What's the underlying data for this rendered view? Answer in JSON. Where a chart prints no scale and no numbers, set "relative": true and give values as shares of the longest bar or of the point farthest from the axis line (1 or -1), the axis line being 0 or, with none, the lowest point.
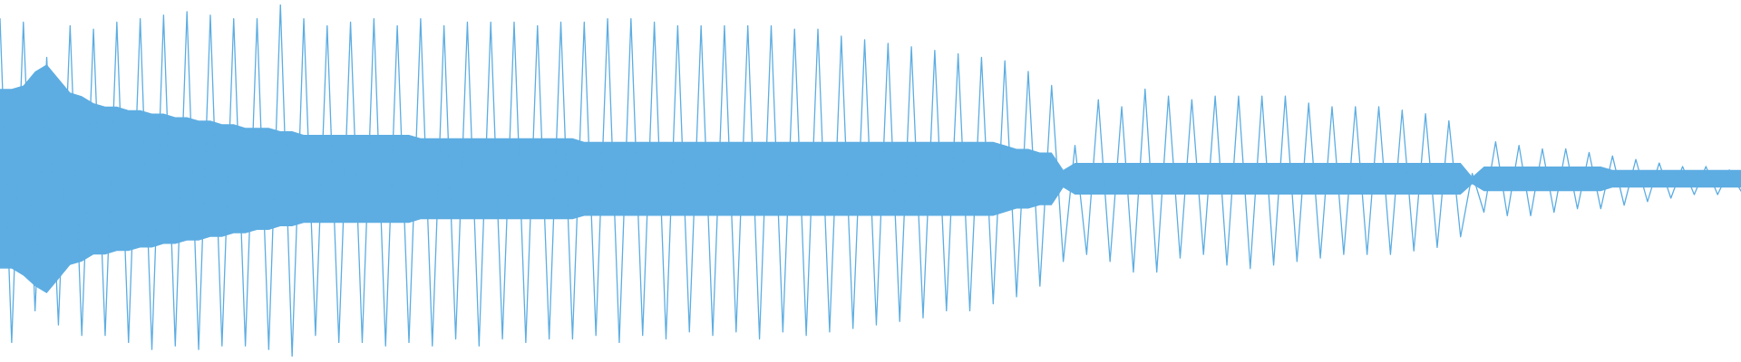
{
  "chart_data": {
    "type": "line",
    "relative": true,
    "categories": [
      null,
      null,
      null,
      null,
      null,
      null,
      null,
      null,
      null,
      null,
      null,
      null,
      null,
      null,
      null,
      null,
      null,
      null,
      null,
      null,
      null,
      null,
      null,
      null,
      null,
      null,
      null,
      null,
      null,
      null,
      null,
      null,
      null,
      null,
      null,
      null,
      null,
      null,
      null,
      null,
      null,
      null,
      null,
      null,
      null,
      null,
      null,
      null,
      null,
      null,
      null,
      null,
      null,
      null,
      null,
      null,
      null,
      null,
      null,
      null,
      null,
      null,
      null,
      null,
      null,
      null,
      null,
      null,
      null,
      null,
      null,
      null,
      null,
      null,
      null,
      null,
      null,
      null,
      null,
      null,
      null,
      null,
      null,
      null,
      null,
      null,
      null,
      null,
      null,
      null,
      null,
      null,
      null,
      null,
      null,
      null,
      null,
      null,
      null,
      null,
      null,
      null,
      null,
      null,
      null,
      null,
      null,
      null,
      null,
      null,
      null,
      null,
      null,
      null,
      null,
      null,
      null,
      null,
      null,
      null,
      null,
      null,
      null,
      null,
      null,
      null,
      null,
      null,
      null,
      null,
      null,
      null,
      null,
      null,
      null,
      null,
      null,
      null,
      null,
      null,
      null,
      null,
      null,
      null,
      null,
      null,
      null,
      null,
      null,
      null
    ],
    "series": [
      {
        "color": "#5dade2",
        "values": [
          0.96,
          0.04,
          0.95,
          0.13,
          0.85,
          0.09,
          0.94,
          0.06,
          0.93,
          0.06,
          0.95,
          0.04,
          0.96,
          0.02,
          0.97,
          0.03,
          0.98,
          0.02,
          0.97,
          0.03,
          0.96,
          0.03,
          0.96,
          0.02,
          1,
          0,
          0.96,
          0.06,
          0.94,
          0.04,
          0.95,
          0.04,
          0.96,
          0.03,
          0.94,
          0.04,
          0.96,
          0.03,
          0.94,
          0.05,
          0.95,
          0.03,
          0.95,
          0.05,
          0.95,
          0.04,
          0.94,
          0.05,
          0.95,
          0.05,
          0.95,
          0.06,
          0.96,
          0.04,
          0.96,
          0.06,
          0.95,
          0.05,
          0.94,
          0.07,
          0.94,
          0.06,
          0.94,
          0.07,
          0.94,
          0.05,
          0.94,
          0.07,
          0.93,
          0.06,
          0.93,
          0.07,
          0.91,
          0.08,
          0.9,
          0.09,
          0.89,
          0.1,
          0.88,
          0.11,
          0.87,
          0.13,
          0.86,
          0.13,
          0.85,
          0.15,
          0.84,
          0.17,
          0.81,
          0.2,
          0.77,
          0.27,
          0.6,
          0.29,
          0.73,
          0.27,
          0.71,
          0.24,
          0.76,
          0.24,
          0.74,
          0.28,
          0.73,
          0.29,
          0.74,
          0.26,
          0.74,
          0.25,
          0.74,
          0.26,
          0.74,
          0.27,
          0.72,
          0.28,
          0.71,
          0.29,
          0.71,
          0.29,
          0.71,
          0.29,
          0.7,
          0.3,
          0.69,
          0.31,
          0.67,
          0.34,
          0.52,
          0.41,
          0.61,
          0.4,
          0.6,
          0.4,
          0.59,
          0.41,
          0.59,
          0.42,
          0.58,
          0.42,
          0.57,
          0.43,
          0.56,
          0.44,
          0.55,
          0.45,
          0.54,
          0.46,
          0.54,
          0.46,
          0.53,
          0.47
        ],
        "upper": [
          0.76,
          0.76,
          0.77,
          0.81,
          0.83,
          0.79,
          0.75,
          0.74,
          0.72,
          0.71,
          0.71,
          0.7,
          0.7,
          0.69,
          0.69,
          0.68,
          0.68,
          0.67,
          0.67,
          0.66,
          0.66,
          0.65,
          0.65,
          0.65,
          0.64,
          0.64,
          0.63,
          0.63,
          0.63,
          0.63,
          0.63,
          0.63,
          0.63,
          0.63,
          0.63,
          0.63,
          0.62,
          0.62,
          0.62,
          0.62,
          0.62,
          0.62,
          0.62,
          0.62,
          0.62,
          0.62,
          0.62,
          0.62,
          0.62,
          0.62,
          0.61,
          0.61,
          0.61,
          0.61,
          0.61,
          0.61,
          0.61,
          0.61,
          0.61,
          0.61,
          0.61,
          0.61,
          0.61,
          0.61,
          0.61,
          0.61,
          0.61,
          0.61,
          0.61,
          0.61,
          0.61,
          0.61,
          0.61,
          0.61,
          0.61,
          0.61,
          0.61,
          0.61,
          0.61,
          0.61,
          0.61,
          0.61,
          0.61,
          0.61,
          0.61,
          0.61,
          0.6,
          0.59,
          0.59,
          0.58,
          0.58,
          0.53,
          0.55,
          0.55,
          0.55,
          0.55,
          0.55,
          0.55,
          0.55,
          0.55,
          0.55,
          0.55,
          0.55,
          0.55,
          0.55,
          0.55,
          0.55,
          0.55,
          0.55,
          0.55,
          0.55,
          0.55,
          0.55,
          0.55,
          0.55,
          0.55,
          0.55,
          0.55,
          0.55,
          0.55,
          0.55,
          0.55,
          0.55,
          0.55,
          0.55,
          0.55,
          0.51,
          0.54,
          0.54,
          0.54,
          0.54,
          0.54,
          0.54,
          0.54,
          0.54,
          0.54,
          0.54,
          0.54,
          0.53,
          0.53,
          0.53,
          0.53,
          0.53,
          0.53,
          0.53,
          0.53,
          0.53,
          0.53,
          0.53,
          0.53
        ],
        "lower": [
          0.25,
          0.25,
          0.23,
          0.2,
          0.18,
          0.22,
          0.26,
          0.27,
          0.29,
          0.29,
          0.3,
          0.3,
          0.31,
          0.31,
          0.32,
          0.32,
          0.33,
          0.33,
          0.34,
          0.34,
          0.35,
          0.35,
          0.36,
          0.36,
          0.37,
          0.37,
          0.38,
          0.38,
          0.38,
          0.38,
          0.38,
          0.38,
          0.38,
          0.38,
          0.38,
          0.38,
          0.39,
          0.39,
          0.39,
          0.39,
          0.39,
          0.39,
          0.39,
          0.39,
          0.39,
          0.39,
          0.39,
          0.39,
          0.39,
          0.39,
          0.4,
          0.4,
          0.4,
          0.4,
          0.4,
          0.4,
          0.4,
          0.4,
          0.4,
          0.4,
          0.4,
          0.4,
          0.4,
          0.4,
          0.4,
          0.4,
          0.4,
          0.4,
          0.4,
          0.4,
          0.4,
          0.4,
          0.4,
          0.4,
          0.4,
          0.4,
          0.4,
          0.4,
          0.4,
          0.4,
          0.4,
          0.4,
          0.4,
          0.4,
          0.4,
          0.4,
          0.41,
          0.42,
          0.42,
          0.43,
          0.43,
          0.48,
          0.46,
          0.46,
          0.46,
          0.46,
          0.46,
          0.46,
          0.46,
          0.46,
          0.46,
          0.46,
          0.46,
          0.46,
          0.46,
          0.46,
          0.46,
          0.46,
          0.46,
          0.46,
          0.46,
          0.46,
          0.46,
          0.46,
          0.46,
          0.46,
          0.46,
          0.46,
          0.46,
          0.46,
          0.46,
          0.46,
          0.46,
          0.46,
          0.46,
          0.46,
          0.49,
          0.47,
          0.47,
          0.47,
          0.47,
          0.47,
          0.47,
          0.47,
          0.47,
          0.47,
          0.47,
          0.47,
          0.48,
          0.48,
          0.48,
          0.48,
          0.48,
          0.48,
          0.48,
          0.48,
          0.48,
          0.48,
          0.48,
          0.48
        ]
      }
    ]
  }
}
